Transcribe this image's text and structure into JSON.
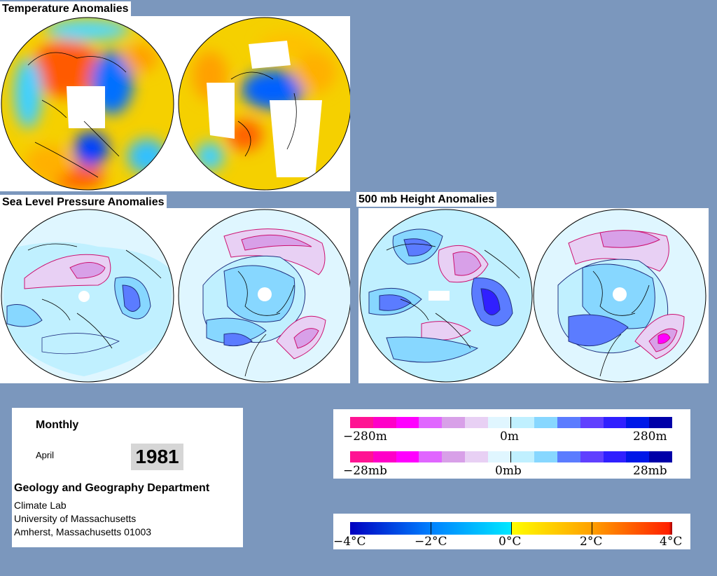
{
  "sections": {
    "temperature_title": "Temperature Anomalies",
    "slp_title": "Sea Level Pressure Anomalies",
    "height_title": "500 mb Height Anomalies"
  },
  "info": {
    "period": "Monthly",
    "month": "April",
    "year": "1981",
    "department": "Geology and Geography Department",
    "lab": "Climate Lab",
    "university": "University of Massachusetts",
    "address": "Amherst, Massachusetts 01003"
  },
  "height_scale": {
    "min_label": "−280m",
    "mid_label": "0m",
    "max_label": "280m"
  },
  "pressure_scale": {
    "min_label": "−28mb",
    "mid_label": "0mb",
    "max_label": "28mb"
  },
  "temperature_scale": {
    "labels": [
      "−4°C",
      "−2°C",
      "0°C",
      "2°C",
      "4°C"
    ]
  },
  "colors": {
    "background": "#7b97bd",
    "diverging_scale": [
      "#ff1493",
      "#ff00c8",
      "#ff00ff",
      "#e066ff",
      "#d8a0e8",
      "#e8d0f4",
      "#e0f6ff",
      "#c0f0ff",
      "#87d7ff",
      "#5b7cff",
      "#6040ff",
      "#3020ff",
      "#0018e8",
      "#0000a8"
    ],
    "temperature_scale": [
      "#0000c0",
      "#00a0ff",
      "#00e8ff",
      "#ffff00",
      "#ffa000",
      "#ff2000"
    ]
  }
}
